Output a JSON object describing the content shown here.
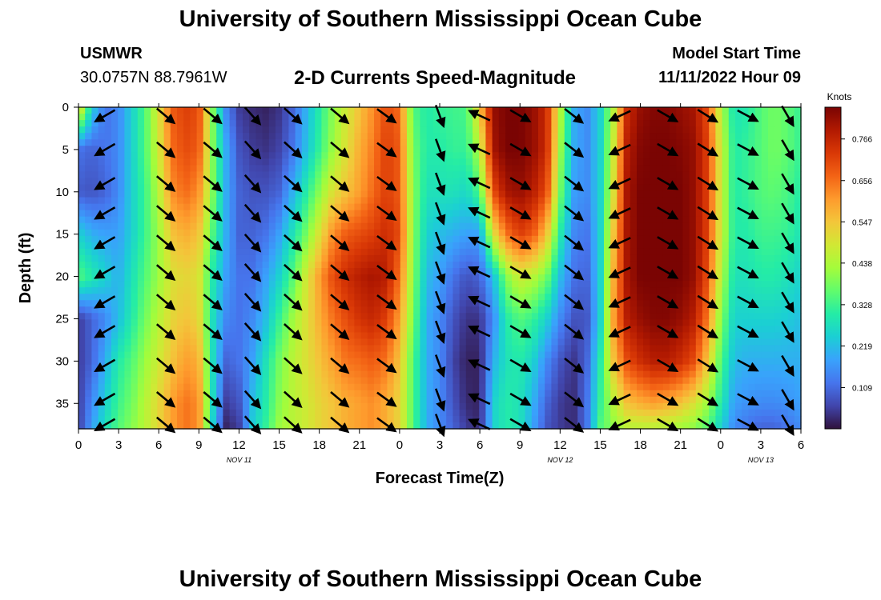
{
  "header": {
    "title": "University of Southern Mississippi Ocean Cube",
    "station_id": "USMWR",
    "location": "30.0757N  88.7961W",
    "subtitle": "2-D Currents Speed-Magnitude",
    "model_start_label": "Model Start Time",
    "model_start_value": "11/11/2022 Hour 09"
  },
  "footer": {
    "title": "University of Southern Mississippi Ocean Cube"
  },
  "chart_data": {
    "type": "heatmap",
    "title": "2-D Currents Speed-Magnitude",
    "xlabel": "Forecast Time(Z)",
    "ylabel": "Depth (ft)",
    "x_ticks": [
      "0",
      "3",
      "6",
      "9",
      "12",
      "15",
      "18",
      "21",
      "0",
      "3",
      "6",
      "9",
      "12",
      "15",
      "18",
      "21",
      "0",
      "3",
      "6"
    ],
    "x_range_hours": [
      0,
      54
    ],
    "date_labels": [
      {
        "text": "NOV 11",
        "hour": 12
      },
      {
        "text": "NOV 12",
        "hour": 36
      },
      {
        "text": "NOV 13",
        "hour": 51
      }
    ],
    "y_ticks": [
      0,
      5,
      10,
      15,
      20,
      25,
      30,
      35
    ],
    "ylim": [
      0,
      38
    ],
    "y_inverted": true,
    "colorbar": {
      "label": "Knots",
      "ticks": [
        0.766,
        0.656,
        0.547,
        0.438,
        0.328,
        0.219,
        0.109
      ],
      "range": [
        0.0,
        0.85
      ],
      "colormap": [
        "#30123b",
        "#4145ab",
        "#4675ed",
        "#39a2fc",
        "#1bcfd4",
        "#24eca6",
        "#61fc6c",
        "#a4fc3b",
        "#d1e834",
        "#f3c63a",
        "#fe9b2d",
        "#f36315",
        "#d93806",
        "#b11901",
        "#7a0403"
      ]
    },
    "speed_columns_hours": [
      0,
      1,
      2,
      3,
      4,
      5,
      6,
      7,
      8,
      9,
      10,
      11,
      12,
      13,
      14,
      15,
      16,
      17,
      18,
      19,
      20,
      21,
      22,
      23,
      24,
      25,
      26,
      27,
      28,
      29,
      30,
      31,
      32,
      33,
      34,
      35,
      36,
      37,
      38,
      39,
      40,
      41,
      42,
      43,
      44,
      45,
      46,
      47,
      48,
      49,
      50,
      51,
      52,
      53,
      54
    ],
    "speed_rows_depth_ft": [
      0,
      5,
      10,
      15,
      20,
      25,
      30,
      35,
      38
    ],
    "speed_knots": [
      [
        0.55,
        0.12,
        0.09,
        0.25,
        0.35,
        0.05,
        0.05,
        0.05,
        0.05
      ],
      [
        0.25,
        0.1,
        0.08,
        0.2,
        0.3,
        0.1,
        0.1,
        0.15,
        0.18
      ],
      [
        0.12,
        0.12,
        0.1,
        0.18,
        0.25,
        0.15,
        0.2,
        0.25,
        0.28
      ],
      [
        0.15,
        0.15,
        0.15,
        0.18,
        0.2,
        0.22,
        0.3,
        0.33,
        0.35
      ],
      [
        0.25,
        0.25,
        0.25,
        0.25,
        0.28,
        0.3,
        0.35,
        0.38,
        0.4
      ],
      [
        0.35,
        0.35,
        0.33,
        0.33,
        0.35,
        0.38,
        0.42,
        0.45,
        0.45
      ],
      [
        0.5,
        0.48,
        0.45,
        0.42,
        0.42,
        0.45,
        0.48,
        0.52,
        0.52
      ],
      [
        0.68,
        0.66,
        0.62,
        0.55,
        0.5,
        0.52,
        0.55,
        0.6,
        0.6
      ],
      [
        0.72,
        0.7,
        0.66,
        0.58,
        0.52,
        0.55,
        0.6,
        0.65,
        0.65
      ],
      [
        0.7,
        0.68,
        0.62,
        0.55,
        0.5,
        0.52,
        0.58,
        0.62,
        0.62
      ],
      [
        0.4,
        0.4,
        0.4,
        0.35,
        0.3,
        0.28,
        0.28,
        0.28,
        0.25
      ],
      [
        0.15,
        0.2,
        0.2,
        0.2,
        0.18,
        0.15,
        0.1,
        0.05,
        0.02
      ],
      [
        0.05,
        0.08,
        0.1,
        0.1,
        0.12,
        0.12,
        0.12,
        0.08,
        0.05
      ],
      [
        0.03,
        0.05,
        0.08,
        0.1,
        0.12,
        0.15,
        0.18,
        0.22,
        0.24
      ],
      [
        0.02,
        0.04,
        0.08,
        0.12,
        0.18,
        0.22,
        0.28,
        0.3,
        0.32
      ],
      [
        0.04,
        0.06,
        0.1,
        0.18,
        0.25,
        0.32,
        0.38,
        0.4,
        0.42
      ],
      [
        0.1,
        0.12,
        0.2,
        0.28,
        0.35,
        0.42,
        0.45,
        0.45,
        0.45
      ],
      [
        0.2,
        0.22,
        0.3,
        0.38,
        0.48,
        0.5,
        0.5,
        0.48,
        0.48
      ],
      [
        0.3,
        0.32,
        0.4,
        0.5,
        0.6,
        0.58,
        0.55,
        0.52,
        0.52
      ],
      [
        0.4,
        0.42,
        0.5,
        0.62,
        0.7,
        0.65,
        0.6,
        0.55,
        0.55
      ],
      [
        0.48,
        0.5,
        0.55,
        0.68,
        0.75,
        0.7,
        0.65,
        0.58,
        0.58
      ],
      [
        0.55,
        0.58,
        0.6,
        0.7,
        0.78,
        0.74,
        0.66,
        0.6,
        0.6
      ],
      [
        0.62,
        0.64,
        0.66,
        0.72,
        0.8,
        0.76,
        0.68,
        0.62,
        0.62
      ],
      [
        0.7,
        0.72,
        0.72,
        0.75,
        0.78,
        0.72,
        0.65,
        0.58,
        0.58
      ],
      [
        0.66,
        0.68,
        0.68,
        0.7,
        0.65,
        0.6,
        0.55,
        0.52,
        0.52
      ],
      [
        0.35,
        0.38,
        0.4,
        0.4,
        0.4,
        0.38,
        0.35,
        0.35,
        0.35
      ],
      [
        0.3,
        0.3,
        0.28,
        0.25,
        0.22,
        0.2,
        0.2,
        0.2,
        0.2
      ],
      [
        0.32,
        0.3,
        0.28,
        0.22,
        0.18,
        0.15,
        0.15,
        0.15,
        0.15
      ],
      [
        0.33,
        0.32,
        0.28,
        0.2,
        0.12,
        0.08,
        0.06,
        0.08,
        0.1
      ],
      [
        0.34,
        0.32,
        0.26,
        0.18,
        0.08,
        0.04,
        0.02,
        0.03,
        0.05
      ],
      [
        0.55,
        0.45,
        0.35,
        0.18,
        0.1,
        0.04,
        0.02,
        0.02,
        0.03
      ],
      [
        0.82,
        0.8,
        0.7,
        0.5,
        0.22,
        0.15,
        0.2,
        0.25,
        0.25
      ],
      [
        0.85,
        0.85,
        0.8,
        0.65,
        0.4,
        0.3,
        0.28,
        0.3,
        0.3
      ],
      [
        0.85,
        0.85,
        0.82,
        0.72,
        0.48,
        0.35,
        0.3,
        0.28,
        0.28
      ],
      [
        0.82,
        0.82,
        0.78,
        0.68,
        0.45,
        0.32,
        0.25,
        0.2,
        0.18
      ],
      [
        0.75,
        0.75,
        0.7,
        0.55,
        0.38,
        0.25,
        0.15,
        0.1,
        0.08
      ],
      [
        0.45,
        0.42,
        0.38,
        0.3,
        0.22,
        0.15,
        0.08,
        0.05,
        0.05
      ],
      [
        0.2,
        0.2,
        0.18,
        0.15,
        0.12,
        0.08,
        0.04,
        0.03,
        0.03
      ],
      [
        0.15,
        0.15,
        0.15,
        0.12,
        0.1,
        0.08,
        0.1,
        0.12,
        0.12
      ],
      [
        0.25,
        0.25,
        0.25,
        0.25,
        0.25,
        0.25,
        0.3,
        0.32,
        0.35
      ],
      [
        0.45,
        0.48,
        0.5,
        0.55,
        0.58,
        0.6,
        0.55,
        0.45,
        0.4
      ],
      [
        0.75,
        0.78,
        0.8,
        0.8,
        0.8,
        0.78,
        0.7,
        0.55,
        0.45
      ],
      [
        0.82,
        0.84,
        0.85,
        0.85,
        0.85,
        0.82,
        0.75,
        0.58,
        0.45
      ],
      [
        0.84,
        0.85,
        0.85,
        0.85,
        0.85,
        0.84,
        0.78,
        0.6,
        0.45
      ],
      [
        0.84,
        0.85,
        0.85,
        0.85,
        0.85,
        0.84,
        0.78,
        0.58,
        0.44
      ],
      [
        0.82,
        0.84,
        0.85,
        0.85,
        0.85,
        0.82,
        0.75,
        0.55,
        0.42
      ],
      [
        0.8,
        0.82,
        0.82,
        0.82,
        0.82,
        0.78,
        0.7,
        0.5,
        0.4
      ],
      [
        0.7,
        0.72,
        0.72,
        0.72,
        0.7,
        0.65,
        0.55,
        0.42,
        0.35
      ],
      [
        0.45,
        0.48,
        0.48,
        0.48,
        0.45,
        0.4,
        0.35,
        0.3,
        0.25
      ],
      [
        0.28,
        0.3,
        0.3,
        0.3,
        0.28,
        0.25,
        0.22,
        0.18,
        0.15
      ],
      [
        0.3,
        0.32,
        0.32,
        0.3,
        0.28,
        0.25,
        0.2,
        0.16,
        0.12
      ],
      [
        0.35,
        0.35,
        0.35,
        0.33,
        0.3,
        0.25,
        0.2,
        0.15,
        0.1
      ],
      [
        0.38,
        0.38,
        0.36,
        0.33,
        0.3,
        0.25,
        0.2,
        0.15,
        0.1
      ],
      [
        0.36,
        0.36,
        0.34,
        0.32,
        0.28,
        0.24,
        0.2,
        0.16,
        0.12
      ],
      [
        0.32,
        0.32,
        0.3,
        0.28,
        0.25,
        0.22,
        0.2,
        0.18,
        0.15
      ]
    ],
    "vector_depths_ft": [
      1,
      5,
      9,
      12.5,
      16,
      19.5,
      23,
      26.5,
      30.5,
      34.5,
      37.5
    ],
    "vector_columns": [
      {
        "hour": 2,
        "angle_deg": 150
      },
      {
        "hour": 6.5,
        "angle_deg": 40
      },
      {
        "hour": 10,
        "angle_deg": 40
      },
      {
        "hour": 13,
        "angle_deg": 48
      },
      {
        "hour": 16,
        "angle_deg": 42
      },
      {
        "hour": 19.5,
        "angle_deg": 40
      },
      {
        "hour": 23,
        "angle_deg": 36
      },
      {
        "hour": 27,
        "angle_deg": 70
      },
      {
        "hour": 30,
        "angle_deg": 205
      },
      {
        "hour": 33,
        "angle_deg": 30
      },
      {
        "hour": 37,
        "angle_deg": 38
      },
      {
        "hour": 40.5,
        "angle_deg": 155
      },
      {
        "hour": 44,
        "angle_deg": 30
      },
      {
        "hour": 47,
        "angle_deg": 32
      },
      {
        "hour": 50,
        "angle_deg": 28
      },
      {
        "hour": 53,
        "angle_deg": 60
      }
    ]
  }
}
